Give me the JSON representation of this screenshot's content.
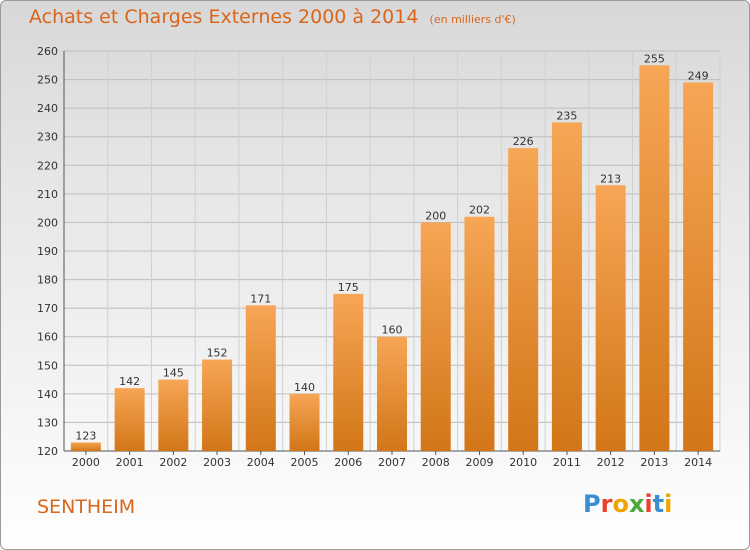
{
  "header": {
    "title": "Achats et Charges Externes 2000 à 2014",
    "unit": "(en milliers d'€)"
  },
  "footer": {
    "commune": "SENTHEIM",
    "logo_text": "Proxiti"
  },
  "colors": {
    "title": "#d9661b",
    "bar_light": "#f6a655",
    "bar_dark": "#d27618",
    "logo": [
      "#3a8fd1",
      "#e8412c",
      "#f0a400",
      "#4aa83a",
      "#e8412c",
      "#3a8fd1",
      "#f0a400"
    ]
  },
  "chart_data": {
    "type": "bar",
    "title": "Achats et Charges Externes 2000 à 2014",
    "subtitle": "(en milliers d'€)",
    "xlabel": "",
    "ylabel": "",
    "categories": [
      "2000",
      "2001",
      "2002",
      "2003",
      "2004",
      "2005",
      "2006",
      "2007",
      "2008",
      "2009",
      "2010",
      "2011",
      "2012",
      "2013",
      "2014"
    ],
    "values": [
      123,
      142,
      145,
      152,
      171,
      140,
      175,
      160,
      200,
      202,
      226,
      235,
      213,
      255,
      249
    ],
    "ylim": [
      120,
      260
    ],
    "yticks": [
      120,
      130,
      140,
      150,
      160,
      170,
      180,
      190,
      200,
      210,
      220,
      230,
      240,
      250,
      260
    ],
    "grid": true,
    "legend": "none"
  }
}
